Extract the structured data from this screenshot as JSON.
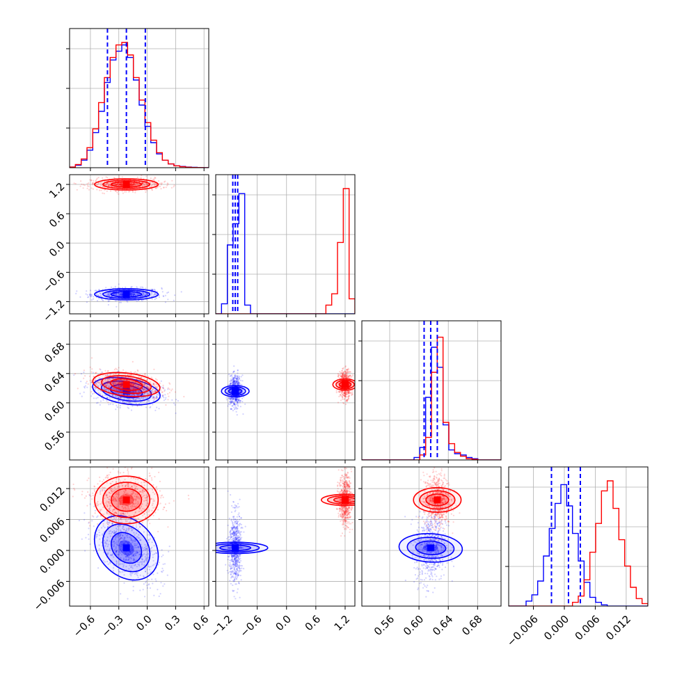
{
  "colors": {
    "series_a": "#0000ff",
    "series_b": "#ff0000",
    "quantile_line": "#0000ff",
    "grid": "#b0b0b0"
  },
  "chart_data": {
    "type": "corner",
    "grid": true,
    "parameters": [
      {
        "index": 0,
        "range": [
          -0.82,
          0.65
        ],
        "ticks": [
          -0.6,
          -0.3,
          0.0,
          0.3,
          0.6
        ],
        "tick_labels": [
          "−0.6",
          "−0.3",
          "0.0",
          "0.3",
          "0.6"
        ]
      },
      {
        "index": 1,
        "range": [
          -1.45,
          1.4
        ],
        "ticks": [
          -1.2,
          -0.6,
          0.0,
          0.6,
          1.2
        ],
        "tick_labels": [
          "−1.2",
          "−0.6",
          "0.0",
          "0.6",
          "1.2"
        ]
      },
      {
        "index": 2,
        "range": [
          0.522,
          0.712
        ],
        "ticks": [
          0.56,
          0.6,
          0.64,
          0.68
        ],
        "tick_labels": [
          "0.56",
          "0.60",
          "0.64",
          "0.68"
        ]
      },
      {
        "index": 3,
        "range": [
          -0.0108,
          0.0162
        ],
        "ticks": [
          -0.006,
          0.0,
          0.006,
          0.012
        ],
        "tick_labels": [
          "−0.006",
          "0.000",
          "0.006",
          "0.012"
        ]
      }
    ],
    "series": [
      {
        "color": "#0000ff",
        "means": [
          -0.22,
          -1.05,
          0.616,
          0.0005
        ],
        "sds": [
          0.16,
          0.055,
          0.009,
          0.003
        ],
        "corr01": 0.0,
        "corr02": -0.3,
        "corr03": -0.55,
        "corr12": 0.0,
        "corr13": 0.0,
        "corr23": 0.1
      },
      {
        "color": "#ff0000",
        "means": [
          -0.22,
          1.2,
          0.625,
          0.0098
        ],
        "sds": [
          0.16,
          0.055,
          0.008,
          0.0022
        ],
        "corr01": 0.0,
        "corr02": -0.25,
        "corr03": 0.0,
        "corr12": 0.0,
        "corr13": 0.0,
        "corr23": 0.0
      }
    ],
    "quantiles": [
      [
        -0.42,
        -0.22,
        -0.02
      ],
      [
        -1.1,
        -1.05,
        -1.0
      ],
      [
        0.607,
        0.616,
        0.625
      ],
      [
        -0.0025,
        0.0008,
        0.0031
      ]
    ],
    "histograms": {
      "bins": 24,
      "diag0": {
        "blue": [
          0.005,
          0.02,
          0.06,
          0.14,
          0.28,
          0.45,
          0.68,
          0.86,
          0.93,
          0.98,
          0.88,
          0.7,
          0.5,
          0.33,
          0.2,
          0.11,
          0.06,
          0.03,
          0.015,
          0.01,
          0.005,
          0.003,
          0.001,
          0.0
        ],
        "red": [
          0.005,
          0.025,
          0.07,
          0.16,
          0.31,
          0.52,
          0.72,
          0.88,
          0.98,
          1.0,
          0.9,
          0.72,
          0.54,
          0.36,
          0.22,
          0.12,
          0.06,
          0.03,
          0.015,
          0.008,
          0.004,
          0.002,
          0.001,
          0.0
        ]
      },
      "diag1": {
        "blue": [
          0.0,
          0.08,
          0.55,
          0.72,
          0.96,
          0.07,
          0.0,
          0.0,
          0.0,
          0.0,
          0.0,
          0.0,
          0.0,
          0.0,
          0.0,
          0.0,
          0.0,
          0.0,
          0.0,
          0.0,
          0.0,
          0.0,
          0.0,
          0.0
        ],
        "red": [
          0.0,
          0.0,
          0.0,
          0.0,
          0.0,
          0.0,
          0.0,
          0.0,
          0.0,
          0.0,
          0.0,
          0.0,
          0.0,
          0.0,
          0.0,
          0.0,
          0.0,
          0.0,
          0.0,
          0.07,
          0.16,
          0.57,
          1.0,
          0.12
        ]
      },
      "diag2": {
        "blue": [
          0.0,
          0.0,
          0.0,
          0.0,
          0.0,
          0.0,
          0.0,
          0.0,
          0.0,
          0.02,
          0.1,
          0.5,
          0.9,
          0.74,
          0.28,
          0.08,
          0.05,
          0.04,
          0.02,
          0.01,
          0.0,
          0.0,
          0.0,
          0.0
        ],
        "red": [
          0.0,
          0.0,
          0.0,
          0.0,
          0.0,
          0.0,
          0.0,
          0.0,
          0.0,
          0.0,
          0.04,
          0.18,
          0.7,
          0.98,
          0.3,
          0.13,
          0.06,
          0.03,
          0.01,
          0.005,
          0.0,
          0.0,
          0.0,
          0.0
        ]
      },
      "diag3": {
        "blue": [
          0.0,
          0.0,
          0.0,
          0.04,
          0.09,
          0.2,
          0.4,
          0.62,
          0.82,
          0.97,
          0.8,
          0.58,
          0.36,
          0.19,
          0.07,
          0.03,
          0.01,
          0.0,
          0.0,
          0.0,
          0.0,
          0.0,
          0.0,
          0.0
        ],
        "red": [
          0.0,
          0.0,
          0.0,
          0.0,
          0.0,
          0.0,
          0.0,
          0.0,
          0.0,
          0.0,
          0.0,
          0.03,
          0.08,
          0.21,
          0.43,
          0.66,
          0.92,
          1.0,
          0.78,
          0.53,
          0.32,
          0.15,
          0.06,
          0.02
        ]
      }
    }
  }
}
